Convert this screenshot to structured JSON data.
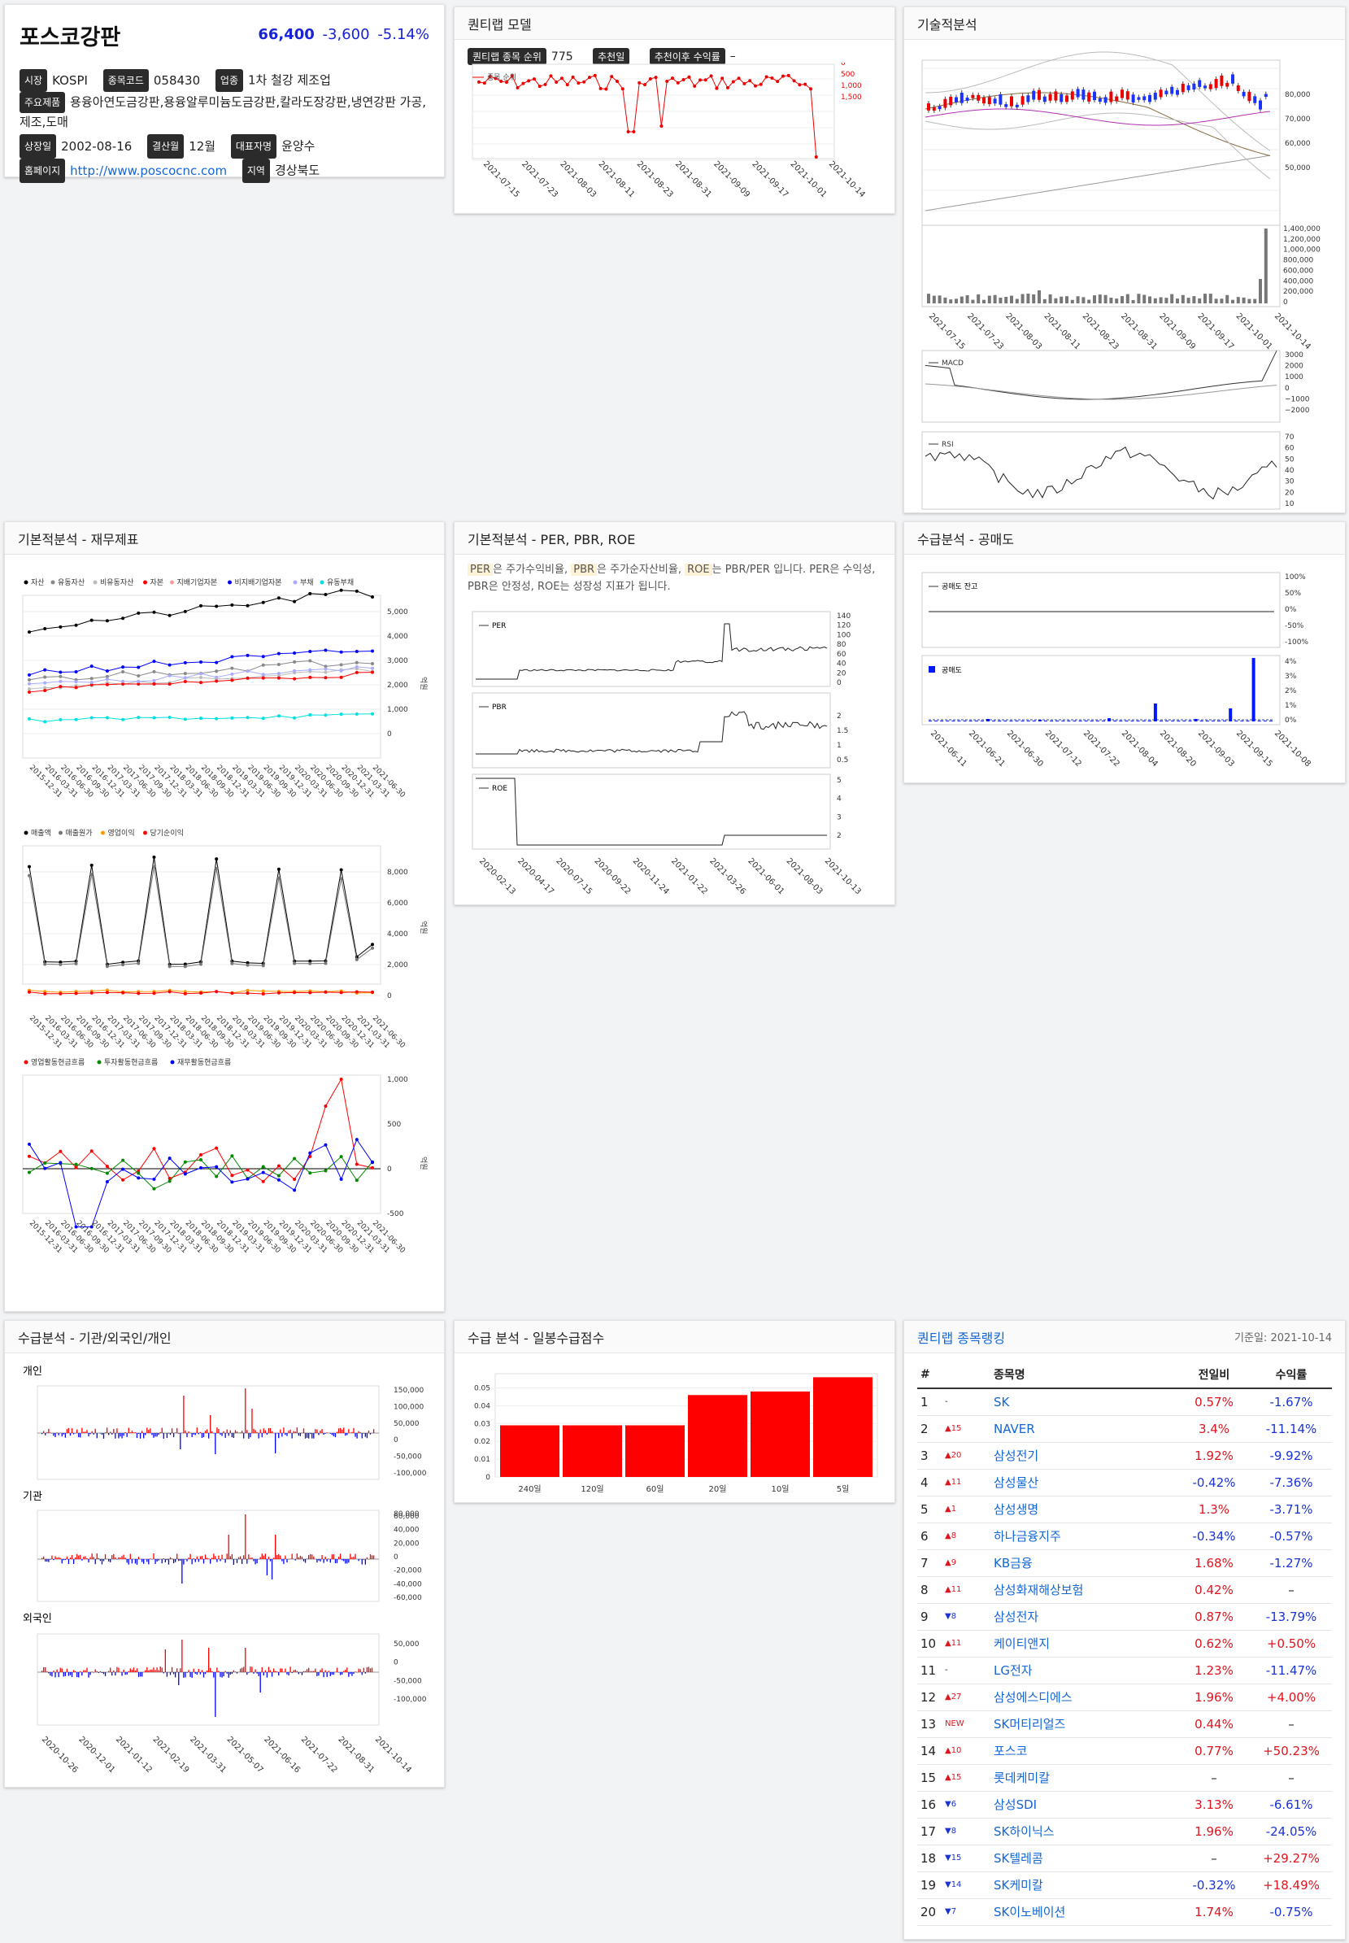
{
  "stock": {
    "name": "포스코강판",
    "price": "66,400",
    "change": "-3,600",
    "change_pct": "-5.14%",
    "market_label": "시장",
    "market": "KOSPI",
    "code_label": "종목코드",
    "code": "058430",
    "sector_label": "업종",
    "sector": "1차 철강 제조업",
    "products_label": "주요제품",
    "products": "용융아연도금강판,용융알루미늄도금강판,칼라도장강판,냉연강판 가공,제조,도매",
    "listed_label": "상장일",
    "listed": "2002-08-16",
    "fiscal_label": "결산월",
    "fiscal": "12월",
    "ceo_label": "대표자명",
    "ceo": "윤양수",
    "homepage_label": "홈페이지",
    "homepage": "http://www.poscocnc.com",
    "region_label": "지역",
    "region": "경상북도"
  },
  "quant": {
    "title": "퀀티랩 모델",
    "rank_label": "퀀티랩 종목 순위",
    "rank": "775",
    "rec_date_label": "추천일",
    "rec_return_label": "추천이후 수익률",
    "rec_return": "–",
    "legend": "종목 순위",
    "y_ticks": [
      "0",
      "500",
      "1,000",
      "1,500"
    ],
    "x_ticks": [
      "2021-07-15",
      "2021-07-23",
      "2021-08-03",
      "2021-08-11",
      "2021-08-23",
      "2021-08-31",
      "2021-09-09",
      "2021-09-17",
      "2021-10-01",
      "2021-10-14"
    ]
  },
  "tech": {
    "title": "기술적분석",
    "price_ticks": [
      "80,000",
      "70,000",
      "60,000",
      "50,000"
    ],
    "vol_ticks": [
      "1,400,000",
      "1,200,000",
      "1,000,000",
      "800,000",
      "600,000",
      "400,000",
      "200,000",
      "0"
    ],
    "x_ticks": [
      "2021-07-15",
      "2021-07-23",
      "2021-08-03",
      "2021-08-11",
      "2021-08-23",
      "2021-08-31",
      "2021-09-09",
      "2021-09-17",
      "2021-10-01",
      "2021-10-14"
    ],
    "macd_label": "MACD",
    "macd_ticks": [
      "3000",
      "2000",
      "1000",
      "0",
      "−1000",
      "−2000"
    ],
    "rsi_label": "RSI",
    "rsi_ticks": [
      "70",
      "60",
      "50",
      "40",
      "30",
      "20",
      "10"
    ]
  },
  "fin": {
    "title": "기본적분석 - 재무제표",
    "legend1": [
      "자산",
      "유동자산",
      "비유동자산",
      "자본",
      "지배기업자본",
      "비지배기업자본",
      "부채",
      "유동부채"
    ],
    "legend1_colors": [
      "#000000",
      "#888888",
      "#bbbbbb",
      "#ff0000",
      "#ff9999",
      "#0000ff",
      "#aaaaff",
      "#00e0e0"
    ],
    "y1_ticks": [
      "5,000",
      "4,000",
      "3,000",
      "2,000",
      "1,000",
      "0"
    ],
    "legend2": [
      "매출액",
      "매출원가",
      "영업이익",
      "당기순이익"
    ],
    "legend2_colors": [
      "#000000",
      "#777777",
      "#ff9900",
      "#ff0000"
    ],
    "y2_ticks": [
      "8,000",
      "6,000",
      "4,000",
      "2,000",
      "0"
    ],
    "legend3": [
      "영업활동현금흐름",
      "투자활동현금흐름",
      "재무활동현금흐름"
    ],
    "legend3_colors": [
      "#ff0000",
      "#008800",
      "#0000ff"
    ],
    "y3_ticks": [
      "1,000",
      "500",
      "0",
      "-500"
    ],
    "y_unit": "억원",
    "x_ticks": [
      "2015-12-31",
      "2016-03-31",
      "2016-06-30",
      "2016-09-30",
      "2016-12-31",
      "2017-03-31",
      "2017-06-30",
      "2017-09-30",
      "2017-12-31",
      "2018-03-31",
      "2018-06-30",
      "2018-09-30",
      "2018-12-31",
      "2019-03-31",
      "2019-06-30",
      "2019-09-30",
      "2019-12-31",
      "2020-03-31",
      "2020-06-30",
      "2020-09-30",
      "2020-12-31",
      "2021-03-31",
      "2021-06-30"
    ]
  },
  "ratio": {
    "title": "기본적분석 - PER, PBR, ROE",
    "desc_per": "PER",
    "desc_1": "은 주가수익비율,",
    "desc_pbr": "PBR",
    "desc_2": "은 주가순자산비율,",
    "desc_roe": "ROE",
    "desc_3": "는 PBR/PER 입니다. PER은 수익성, PBR은 안정성, ROE는 성장성 지표가 됩니다.",
    "per_label": "PER",
    "per_ticks": [
      "140",
      "120",
      "100",
      "80",
      "60",
      "40",
      "20",
      "0"
    ],
    "pbr_label": "PBR",
    "pbr_ticks": [
      "2",
      "1.5",
      "1",
      "0.5"
    ],
    "roe_label": "ROE",
    "roe_ticks": [
      "5",
      "4",
      "3",
      "2"
    ],
    "x_ticks": [
      "2020-02-13",
      "2020-04-17",
      "2020-07-15",
      "2020-09-22",
      "2020-11-24",
      "2021-01-22",
      "2021-03-26",
      "2021-06-01",
      "2021-08-03",
      "2021-10-13"
    ]
  },
  "short": {
    "title": "수급분석 - 공매도",
    "bal_label": "공매도 잔고",
    "bal_ticks": [
      "100%",
      "50%",
      "0%",
      "-50%",
      "-100%"
    ],
    "vol_label": "공매도",
    "vol_ticks": [
      "4%",
      "3%",
      "2%",
      "1%",
      "0%"
    ],
    "x_ticks": [
      "2021-06-11",
      "2021-06-21",
      "2021-06-30",
      "2021-07-12",
      "2021-07-22",
      "2021-08-04",
      "2021-08-20",
      "2021-09-03",
      "2021-09-15",
      "2021-10-08"
    ]
  },
  "flow": {
    "title": "수급분석 - 기관/외국인/개인",
    "p1_label": "개인",
    "p1_ticks": [
      "150,000",
      "100,000",
      "50,000",
      "0",
      "-50,000",
      "-100,000"
    ],
    "p2_label": "기관",
    "p2_ticks": [
      "60,000",
      "40,000",
      "20,000",
      "0",
      "-20,000",
      "-40,000",
      "-60,000"
    ],
    "p2_ticks_top": "80,000",
    "p3_label": "외국인",
    "p3_ticks": [
      "50,000",
      "0",
      "-50,000",
      "-100,000"
    ],
    "x_ticks": [
      "2020-10-26",
      "2020-12-01",
      "2021-01-12",
      "2021-02-19",
      "2021-03-31",
      "2021-05-07",
      "2021-06-16",
      "2021-07-22",
      "2021-08-31",
      "2021-10-14"
    ]
  },
  "score": {
    "title": "수급 분석 - 일봉수급점수",
    "y_ticks": [
      "0.05",
      "0.04",
      "0.03",
      "0.02",
      "0.01",
      "0"
    ],
    "chart_data": {
      "type": "bar",
      "categories": [
        "240일",
        "120일",
        "60일",
        "20일",
        "10일",
        "5일"
      ],
      "values": [
        0.029,
        0.029,
        0.029,
        0.046,
        0.048,
        0.056
      ],
      "ylim": [
        0,
        0.058
      ],
      "color": "#ff0000"
    }
  },
  "ranking": {
    "title": "퀀티랩 종목랭킹",
    "date": "기준일: 2021-10-14",
    "headers": [
      "#",
      "종목명",
      "전일비",
      "수익률"
    ],
    "rows": [
      {
        "no": "1",
        "chg": "-",
        "dir": "none",
        "name": "SK",
        "day": "0.57%",
        "day_dir": "up",
        "ret": "-1.67%",
        "ret_dir": "down"
      },
      {
        "no": "2",
        "chg": "▲15",
        "dir": "up",
        "name": "NAVER",
        "day": "3.4%",
        "day_dir": "up",
        "ret": "-11.14%",
        "ret_dir": "down"
      },
      {
        "no": "3",
        "chg": "▲20",
        "dir": "up",
        "name": "삼성전기",
        "day": "1.92%",
        "day_dir": "up",
        "ret": "-9.92%",
        "ret_dir": "down"
      },
      {
        "no": "4",
        "chg": "▲11",
        "dir": "up",
        "name": "삼성물산",
        "day": "-0.42%",
        "day_dir": "down",
        "ret": "-7.36%",
        "ret_dir": "down"
      },
      {
        "no": "5",
        "chg": "▲1",
        "dir": "up",
        "name": "삼성생명",
        "day": "1.3%",
        "day_dir": "up",
        "ret": "-3.71%",
        "ret_dir": "down"
      },
      {
        "no": "6",
        "chg": "▲8",
        "dir": "up",
        "name": "하나금융지주",
        "day": "-0.34%",
        "day_dir": "down",
        "ret": "-0.57%",
        "ret_dir": "down"
      },
      {
        "no": "7",
        "chg": "▲9",
        "dir": "up",
        "name": "KB금융",
        "day": "1.68%",
        "day_dir": "up",
        "ret": "-1.27%",
        "ret_dir": "down"
      },
      {
        "no": "8",
        "chg": "▲11",
        "dir": "up",
        "name": "삼성화재해상보험",
        "day": "0.42%",
        "day_dir": "up",
        "ret": "–",
        "ret_dir": "none"
      },
      {
        "no": "9",
        "chg": "▼8",
        "dir": "down",
        "name": "삼성전자",
        "day": "0.87%",
        "day_dir": "up",
        "ret": "-13.79%",
        "ret_dir": "down"
      },
      {
        "no": "10",
        "chg": "▲11",
        "dir": "up",
        "name": "케이티앤지",
        "day": "0.62%",
        "day_dir": "up",
        "ret": "+0.50%",
        "ret_dir": "up"
      },
      {
        "no": "11",
        "chg": "-",
        "dir": "none",
        "name": "LG전자",
        "day": "1.23%",
        "day_dir": "up",
        "ret": "-11.47%",
        "ret_dir": "down"
      },
      {
        "no": "12",
        "chg": "▲27",
        "dir": "up",
        "name": "삼성에스디에스",
        "day": "1.96%",
        "day_dir": "up",
        "ret": "+4.00%",
        "ret_dir": "up"
      },
      {
        "no": "13",
        "chg": "NEW",
        "dir": "up",
        "name": "SK머티리얼즈",
        "day": "0.44%",
        "day_dir": "up",
        "ret": "–",
        "ret_dir": "none"
      },
      {
        "no": "14",
        "chg": "▲10",
        "dir": "up",
        "name": "포스코",
        "day": "0.77%",
        "day_dir": "up",
        "ret": "+50.23%",
        "ret_dir": "up"
      },
      {
        "no": "15",
        "chg": "▲15",
        "dir": "up",
        "name": "롯데케미칼",
        "day": "–",
        "day_dir": "none",
        "ret": "–",
        "ret_dir": "none"
      },
      {
        "no": "16",
        "chg": "▼6",
        "dir": "down",
        "name": "삼성SDI",
        "day": "3.13%",
        "day_dir": "up",
        "ret": "-6.61%",
        "ret_dir": "down"
      },
      {
        "no": "17",
        "chg": "▼8",
        "dir": "down",
        "name": "SK하이닉스",
        "day": "1.96%",
        "day_dir": "up",
        "ret": "-24.05%",
        "ret_dir": "down"
      },
      {
        "no": "18",
        "chg": "▼15",
        "dir": "down",
        "name": "SK텔레콤",
        "day": "–",
        "day_dir": "none",
        "ret": "+29.27%",
        "ret_dir": "up"
      },
      {
        "no": "19",
        "chg": "▼14",
        "dir": "down",
        "name": "SK케미칼",
        "day": "-0.32%",
        "day_dir": "down",
        "ret": "+18.49%",
        "ret_dir": "up"
      },
      {
        "no": "20",
        "chg": "▼7",
        "dir": "down",
        "name": "SK이노베이션",
        "day": "1.74%",
        "day_dir": "up",
        "ret": "-0.75%",
        "ret_dir": "down"
      }
    ]
  }
}
